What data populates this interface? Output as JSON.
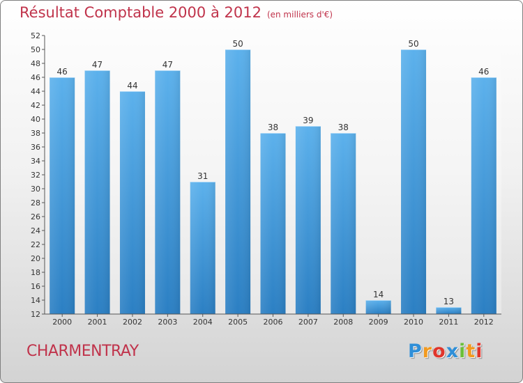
{
  "chart_title": "Résultat Comptable 2000 à 2012",
  "chart_subtitle": "(en milliers d'€)",
  "city": "CHARMENTRAY",
  "logo": {
    "letters": [
      "P",
      "r",
      "o",
      "x",
      "i",
      "t",
      "i"
    ],
    "colors": [
      "#2f8fd8",
      "#f29a1f",
      "#e0352b",
      "#2f8fd8",
      "#6bbf3a",
      "#f29a1f",
      "#e0352b"
    ]
  },
  "colors": {
    "title": "#c0334b",
    "bar_light": "#5cb1ec",
    "bar_dark": "#2b7fc3"
  },
  "chart_data": {
    "type": "bar",
    "title": "Résultat Comptable 2000 à 2012",
    "subtitle": "(en milliers d'€)",
    "categories": [
      "2000",
      "2001",
      "2002",
      "2003",
      "2004",
      "2005",
      "2006",
      "2007",
      "2008",
      "2009",
      "2010",
      "2011",
      "2012"
    ],
    "values": [
      46,
      47,
      44,
      47,
      31,
      50,
      38,
      39,
      38,
      14,
      50,
      13,
      46
    ],
    "ylim": [
      12,
      52
    ],
    "yticks": [
      12,
      14,
      16,
      18,
      20,
      22,
      24,
      26,
      28,
      30,
      32,
      34,
      36,
      38,
      40,
      42,
      44,
      46,
      48,
      50,
      52
    ],
    "xlabel": "",
    "ylabel": "",
    "grid": false,
    "data_labels": true
  }
}
